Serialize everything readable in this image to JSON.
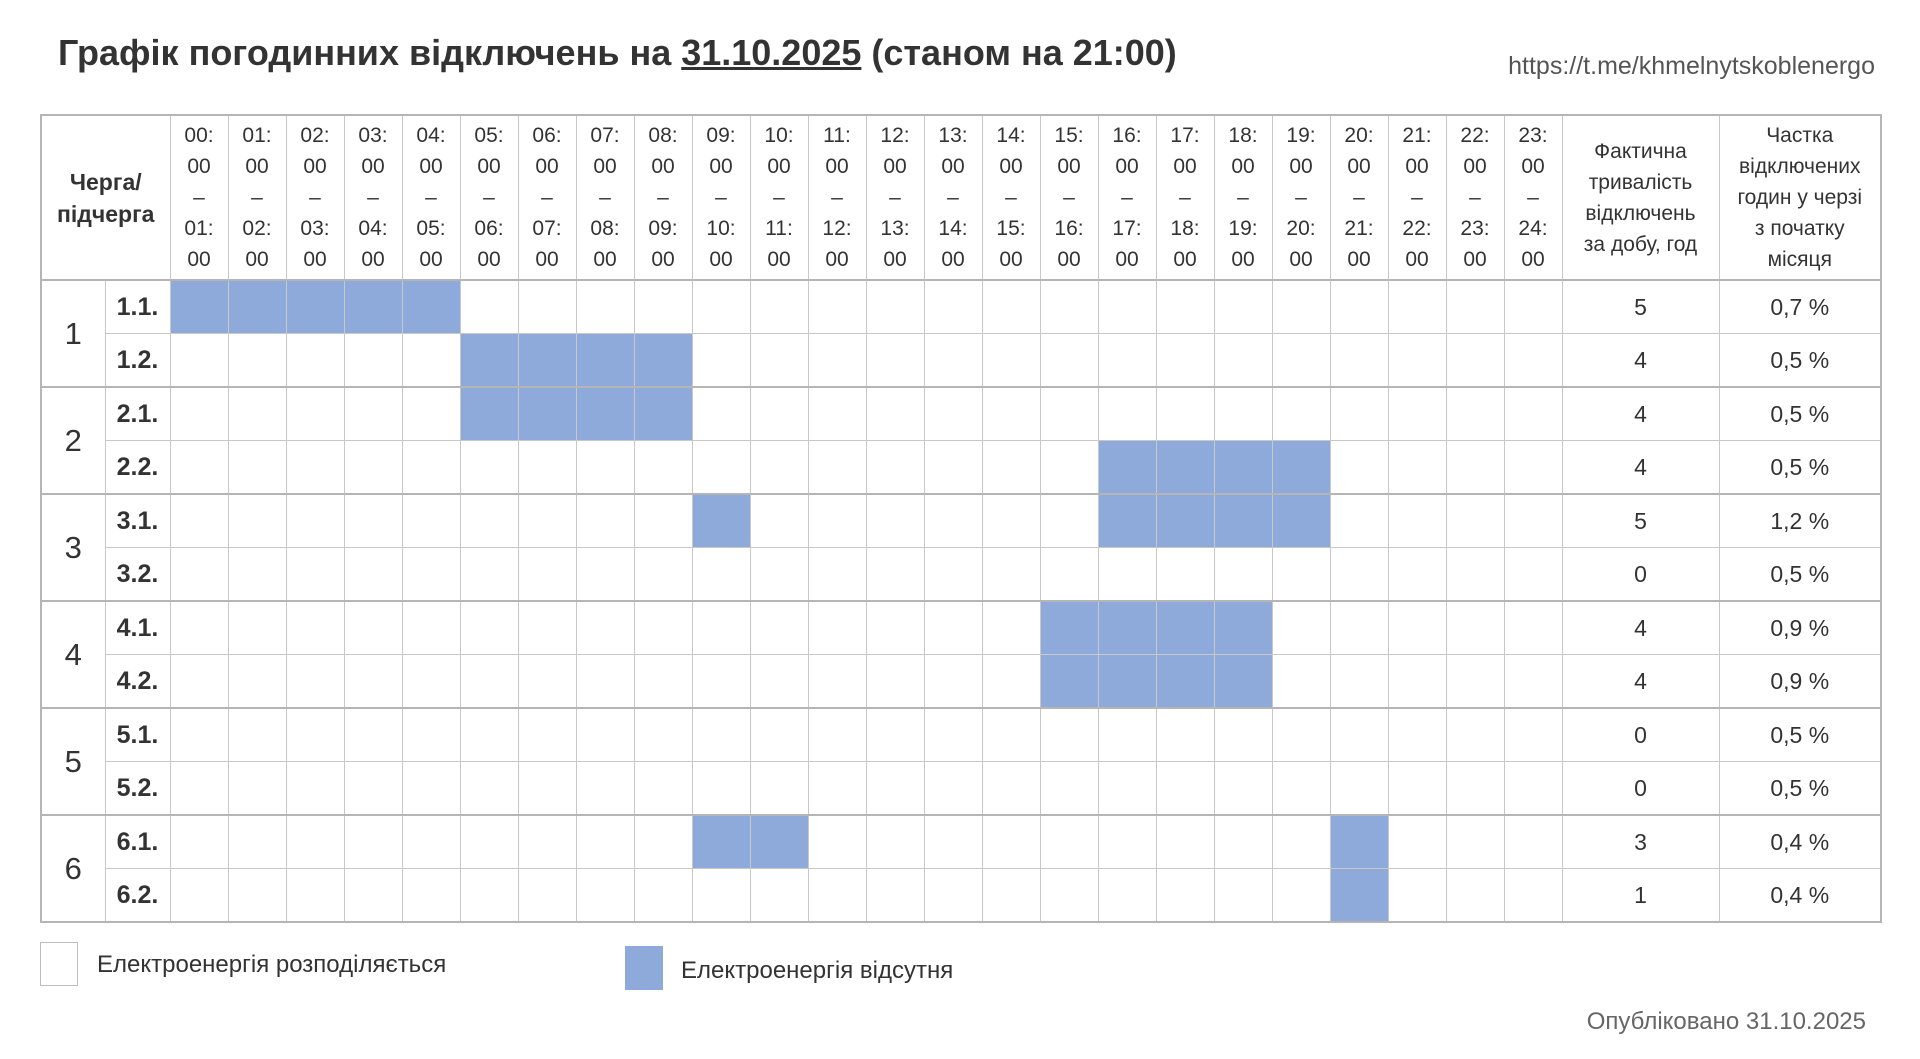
{
  "header": {
    "title_prefix": "Графік погодинних відключень на ",
    "title_date": "31.10.2025",
    "title_suffix": " (станом на 21:00)",
    "link": "https://t.me/khmelnytskoblenergo"
  },
  "table": {
    "queue_header": [
      "Черга/",
      "підчерга"
    ],
    "hours": [
      [
        "00:",
        "00",
        "–",
        "01:",
        "00"
      ],
      [
        "01:",
        "00",
        "–",
        "02:",
        "00"
      ],
      [
        "02:",
        "00",
        "–",
        "03:",
        "00"
      ],
      [
        "03:",
        "00",
        "–",
        "04:",
        "00"
      ],
      [
        "04:",
        "00",
        "–",
        "05:",
        "00"
      ],
      [
        "05:",
        "00",
        "–",
        "06:",
        "00"
      ],
      [
        "06:",
        "00",
        "–",
        "07:",
        "00"
      ],
      [
        "07:",
        "00",
        "–",
        "08:",
        "00"
      ],
      [
        "08:",
        "00",
        "–",
        "09:",
        "00"
      ],
      [
        "09:",
        "00",
        "–",
        "10:",
        "00"
      ],
      [
        "10:",
        "00",
        "–",
        "11:",
        "00"
      ],
      [
        "11:",
        "00",
        "–",
        "12:",
        "00"
      ],
      [
        "12:",
        "00",
        "–",
        "13:",
        "00"
      ],
      [
        "13:",
        "00",
        "–",
        "14:",
        "00"
      ],
      [
        "14:",
        "00",
        "–",
        "15:",
        "00"
      ],
      [
        "15:",
        "00",
        "–",
        "16:",
        "00"
      ],
      [
        "16:",
        "00",
        "–",
        "17:",
        "00"
      ],
      [
        "17:",
        "00",
        "–",
        "18:",
        "00"
      ],
      [
        "18:",
        "00",
        "–",
        "19:",
        "00"
      ],
      [
        "19:",
        "00",
        "–",
        "20:",
        "00"
      ],
      [
        "20:",
        "00",
        "–",
        "21:",
        "00"
      ],
      [
        "21:",
        "00",
        "–",
        "22:",
        "00"
      ],
      [
        "22:",
        "00",
        "–",
        "23:",
        "00"
      ],
      [
        "23:",
        "00",
        "–",
        "24:",
        "00"
      ]
    ],
    "duration_header": [
      "Фактична",
      "тривалість",
      "відключень",
      "за добу, год"
    ],
    "share_header": [
      "Частка",
      "відключених",
      "годин у черзі",
      "з початку",
      "місяця"
    ],
    "groups": [
      {
        "label": "1",
        "subgroups": [
          {
            "label": "1.1.",
            "outages": [
              0,
              1,
              2,
              3,
              4
            ],
            "duration": "5",
            "share": "0,7 %"
          },
          {
            "label": "1.2.",
            "outages": [
              5,
              6,
              7,
              8
            ],
            "duration": "4",
            "share": "0,5 %"
          }
        ]
      },
      {
        "label": "2",
        "subgroups": [
          {
            "label": "2.1.",
            "outages": [
              5,
              6,
              7,
              8
            ],
            "duration": "4",
            "share": "0,5 %"
          },
          {
            "label": "2.2.",
            "outages": [
              16,
              17,
              18,
              19
            ],
            "duration": "4",
            "share": "0,5 %"
          }
        ]
      },
      {
        "label": "3",
        "subgroups": [
          {
            "label": "3.1.",
            "outages": [
              9,
              16,
              17,
              18,
              19
            ],
            "duration": "5",
            "share": "1,2 %"
          },
          {
            "label": "3.2.",
            "outages": [],
            "duration": "0",
            "share": "0,5 %"
          }
        ]
      },
      {
        "label": "4",
        "subgroups": [
          {
            "label": "4.1.",
            "outages": [
              15,
              16,
              17,
              18
            ],
            "duration": "4",
            "share": "0,9 %"
          },
          {
            "label": "4.2.",
            "outages": [
              15,
              16,
              17,
              18
            ],
            "duration": "4",
            "share": "0,9 %"
          }
        ]
      },
      {
        "label": "5",
        "subgroups": [
          {
            "label": "5.1.",
            "outages": [],
            "duration": "0",
            "share": "0,5 %"
          },
          {
            "label": "5.2.",
            "outages": [],
            "duration": "0",
            "share": "0,5 %"
          }
        ]
      },
      {
        "label": "6",
        "subgroups": [
          {
            "label": "6.1.",
            "outages": [
              9,
              10,
              20
            ],
            "duration": "3",
            "share": "0,4 %"
          },
          {
            "label": "6.2.",
            "outages": [
              20
            ],
            "duration": "1",
            "share": "0,4 %"
          }
        ]
      }
    ]
  },
  "legend": {
    "on_label": "Електроенергія розподіляється",
    "off_label": "Електроенергія відсутня"
  },
  "colors": {
    "outage": "#8eaadb",
    "border": "#c8c8c8"
  },
  "footer": {
    "published": "Опубліковано 31.10.2025"
  }
}
